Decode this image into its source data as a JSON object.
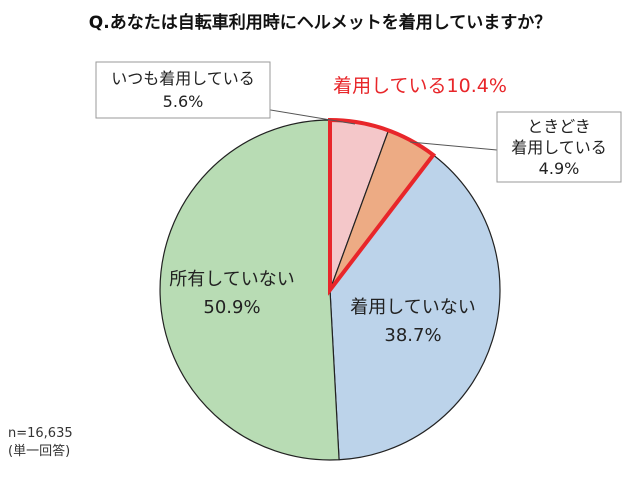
{
  "chart_data": {
    "type": "pie",
    "title": "Q.あなたは自転車利用時にヘルメットを着用していますか？",
    "slices": [
      {
        "label": "いつも着用している",
        "value": 5.6,
        "value_label": "5.6%",
        "color": "#f4c7c9"
      },
      {
        "label": "ときどき着用している",
        "value": 4.9,
        "value_label": "4.9%",
        "color": "#edab84"
      },
      {
        "label": "着用していない",
        "value": 38.7,
        "value_label": "38.7%",
        "color": "#bcd3ea"
      },
      {
        "label": "所有していない",
        "value": 50.9,
        "value_label": "50.9%",
        "color": "#b8dcb4"
      }
    ],
    "group_highlight": {
      "label": "着用している10.4%",
      "value": 10.4,
      "color": "#e8262a"
    },
    "sample_note": "n=16,635",
    "answer_note": "(単一回答)"
  },
  "labels": {
    "always_line1": "いつも着用している",
    "always_line2": "5.6%",
    "sometimes_line1": "ときどき",
    "sometimes_line2": "着用している",
    "sometimes_line3": "4.9%",
    "not_wearing_line1": "着用していない",
    "not_wearing_line2": "38.7%",
    "not_owned_line1": "所有していない",
    "not_owned_line2": "50.9%"
  }
}
